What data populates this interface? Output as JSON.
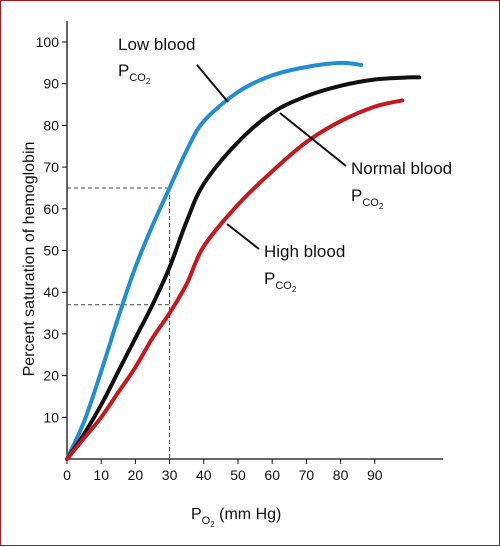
{
  "chart_data": {
    "type": "line",
    "ylabel": "Percent saturation of hemoglobin",
    "xlabel_main": "P",
    "xlabel_sub": "O",
    "xlabel_subsub": "2",
    "xlabel_unit": " (mm Hg)",
    "xlim": [
      0,
      110
    ],
    "ylim": [
      0,
      105
    ],
    "x_ticks": [
      0,
      10,
      20,
      30,
      40,
      50,
      60,
      70,
      80,
      90
    ],
    "y_ticks": [
      10,
      20,
      30,
      40,
      50,
      60,
      70,
      80,
      90,
      100
    ],
    "grid": false,
    "colors": {
      "low": "#1f8fcf",
      "normal": "#111111",
      "high": "#c8181e"
    },
    "series": [
      {
        "key": "low",
        "x": [
          0,
          5,
          10,
          15,
          20,
          25,
          30,
          35,
          40,
          50,
          60,
          70,
          80,
          86
        ],
        "y": [
          0,
          9,
          21,
          34,
          46,
          56,
          65,
          74,
          81,
          88,
          92,
          94,
          95,
          94.5
        ]
      },
      {
        "key": "normal",
        "x": [
          0,
          5,
          10,
          15,
          20,
          25,
          30,
          35,
          40,
          50,
          60,
          70,
          80,
          90,
          100,
          103
        ],
        "y": [
          0,
          6,
          13,
          21,
          29,
          37,
          46,
          57,
          66,
          76,
          83,
          87,
          89.5,
          91,
          91.5,
          91.5
        ]
      },
      {
        "key": "high",
        "x": [
          0,
          5,
          10,
          15,
          20,
          25,
          30,
          35,
          40,
          50,
          60,
          70,
          80,
          90,
          98
        ],
        "y": [
          0,
          5,
          10,
          16,
          22,
          29,
          35,
          42,
          51,
          61,
          69,
          76,
          81,
          84.5,
          86
        ]
      }
    ],
    "guides": [
      {
        "x": 30,
        "y": 65
      },
      {
        "x": 30,
        "y": 37
      }
    ],
    "annotations": [
      {
        "key": "low",
        "line1": "Low blood",
        "p": "P",
        "sub1": "CO",
        "sub2": "2"
      },
      {
        "key": "normal",
        "line1": "Normal blood",
        "p": "P",
        "sub1": "CO",
        "sub2": "2"
      },
      {
        "key": "high",
        "line1": "High blood",
        "p": "P",
        "sub1": "CO",
        "sub2": "2"
      }
    ]
  }
}
